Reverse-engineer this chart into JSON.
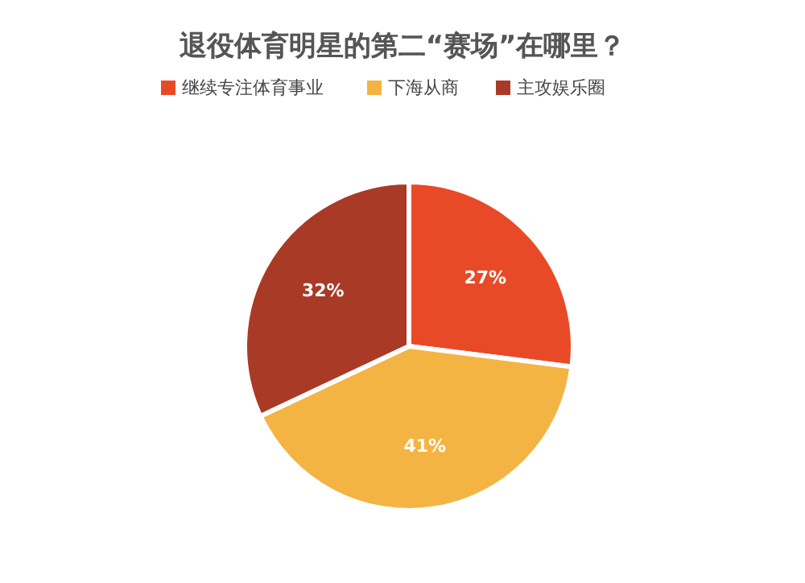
{
  "chart_data": {
    "type": "pie",
    "title": "退役体育明星的第二“赛场”在哪里？",
    "categories": [
      "继续专注体育事业",
      "下海从商",
      "主攻娱乐圈"
    ],
    "values": [
      27,
      41,
      32
    ],
    "colors": [
      "#e84a27",
      "#f4b443",
      "#a93a26"
    ],
    "value_labels": [
      "27%",
      "41%",
      "32%"
    ],
    "legend": "top"
  }
}
